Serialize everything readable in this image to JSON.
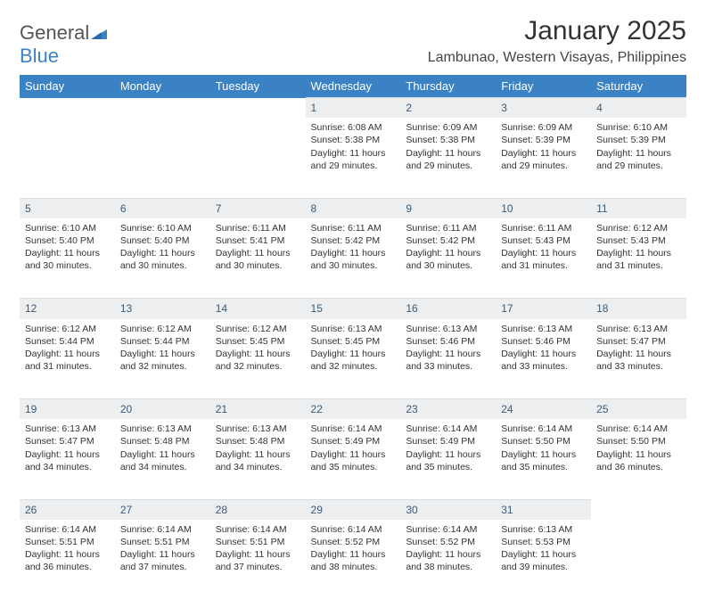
{
  "logo": {
    "word1": "General",
    "word2": "Blue"
  },
  "title": "January 2025",
  "location": "Lambunao, Western Visayas, Philippines",
  "weekdays": [
    "Sunday",
    "Monday",
    "Tuesday",
    "Wednesday",
    "Thursday",
    "Friday",
    "Saturday"
  ],
  "colors": {
    "header_bg": "#3b82c4",
    "daynum_bg": "#eceef0",
    "daynum_color": "#3a5a7a",
    "text": "#333333"
  },
  "weeks": [
    {
      "nums": [
        "",
        "",
        "",
        "1",
        "2",
        "3",
        "4"
      ],
      "cells": [
        {
          "empty": true
        },
        {
          "empty": true
        },
        {
          "empty": true
        },
        {
          "sunrise": "Sunrise: 6:08 AM",
          "sunset": "Sunset: 5:38 PM",
          "day1": "Daylight: 11 hours",
          "day2": "and 29 minutes."
        },
        {
          "sunrise": "Sunrise: 6:09 AM",
          "sunset": "Sunset: 5:38 PM",
          "day1": "Daylight: 11 hours",
          "day2": "and 29 minutes."
        },
        {
          "sunrise": "Sunrise: 6:09 AM",
          "sunset": "Sunset: 5:39 PM",
          "day1": "Daylight: 11 hours",
          "day2": "and 29 minutes."
        },
        {
          "sunrise": "Sunrise: 6:10 AM",
          "sunset": "Sunset: 5:39 PM",
          "day1": "Daylight: 11 hours",
          "day2": "and 29 minutes."
        }
      ]
    },
    {
      "nums": [
        "5",
        "6",
        "7",
        "8",
        "9",
        "10",
        "11"
      ],
      "cells": [
        {
          "sunrise": "Sunrise: 6:10 AM",
          "sunset": "Sunset: 5:40 PM",
          "day1": "Daylight: 11 hours",
          "day2": "and 30 minutes."
        },
        {
          "sunrise": "Sunrise: 6:10 AM",
          "sunset": "Sunset: 5:40 PM",
          "day1": "Daylight: 11 hours",
          "day2": "and 30 minutes."
        },
        {
          "sunrise": "Sunrise: 6:11 AM",
          "sunset": "Sunset: 5:41 PM",
          "day1": "Daylight: 11 hours",
          "day2": "and 30 minutes."
        },
        {
          "sunrise": "Sunrise: 6:11 AM",
          "sunset": "Sunset: 5:42 PM",
          "day1": "Daylight: 11 hours",
          "day2": "and 30 minutes."
        },
        {
          "sunrise": "Sunrise: 6:11 AM",
          "sunset": "Sunset: 5:42 PM",
          "day1": "Daylight: 11 hours",
          "day2": "and 30 minutes."
        },
        {
          "sunrise": "Sunrise: 6:11 AM",
          "sunset": "Sunset: 5:43 PM",
          "day1": "Daylight: 11 hours",
          "day2": "and 31 minutes."
        },
        {
          "sunrise": "Sunrise: 6:12 AM",
          "sunset": "Sunset: 5:43 PM",
          "day1": "Daylight: 11 hours",
          "day2": "and 31 minutes."
        }
      ]
    },
    {
      "nums": [
        "12",
        "13",
        "14",
        "15",
        "16",
        "17",
        "18"
      ],
      "cells": [
        {
          "sunrise": "Sunrise: 6:12 AM",
          "sunset": "Sunset: 5:44 PM",
          "day1": "Daylight: 11 hours",
          "day2": "and 31 minutes."
        },
        {
          "sunrise": "Sunrise: 6:12 AM",
          "sunset": "Sunset: 5:44 PM",
          "day1": "Daylight: 11 hours",
          "day2": "and 32 minutes."
        },
        {
          "sunrise": "Sunrise: 6:12 AM",
          "sunset": "Sunset: 5:45 PM",
          "day1": "Daylight: 11 hours",
          "day2": "and 32 minutes."
        },
        {
          "sunrise": "Sunrise: 6:13 AM",
          "sunset": "Sunset: 5:45 PM",
          "day1": "Daylight: 11 hours",
          "day2": "and 32 minutes."
        },
        {
          "sunrise": "Sunrise: 6:13 AM",
          "sunset": "Sunset: 5:46 PM",
          "day1": "Daylight: 11 hours",
          "day2": "and 33 minutes."
        },
        {
          "sunrise": "Sunrise: 6:13 AM",
          "sunset": "Sunset: 5:46 PM",
          "day1": "Daylight: 11 hours",
          "day2": "and 33 minutes."
        },
        {
          "sunrise": "Sunrise: 6:13 AM",
          "sunset": "Sunset: 5:47 PM",
          "day1": "Daylight: 11 hours",
          "day2": "and 33 minutes."
        }
      ]
    },
    {
      "nums": [
        "19",
        "20",
        "21",
        "22",
        "23",
        "24",
        "25"
      ],
      "cells": [
        {
          "sunrise": "Sunrise: 6:13 AM",
          "sunset": "Sunset: 5:47 PM",
          "day1": "Daylight: 11 hours",
          "day2": "and 34 minutes."
        },
        {
          "sunrise": "Sunrise: 6:13 AM",
          "sunset": "Sunset: 5:48 PM",
          "day1": "Daylight: 11 hours",
          "day2": "and 34 minutes."
        },
        {
          "sunrise": "Sunrise: 6:13 AM",
          "sunset": "Sunset: 5:48 PM",
          "day1": "Daylight: 11 hours",
          "day2": "and 34 minutes."
        },
        {
          "sunrise": "Sunrise: 6:14 AM",
          "sunset": "Sunset: 5:49 PM",
          "day1": "Daylight: 11 hours",
          "day2": "and 35 minutes."
        },
        {
          "sunrise": "Sunrise: 6:14 AM",
          "sunset": "Sunset: 5:49 PM",
          "day1": "Daylight: 11 hours",
          "day2": "and 35 minutes."
        },
        {
          "sunrise": "Sunrise: 6:14 AM",
          "sunset": "Sunset: 5:50 PM",
          "day1": "Daylight: 11 hours",
          "day2": "and 35 minutes."
        },
        {
          "sunrise": "Sunrise: 6:14 AM",
          "sunset": "Sunset: 5:50 PM",
          "day1": "Daylight: 11 hours",
          "day2": "and 36 minutes."
        }
      ]
    },
    {
      "nums": [
        "26",
        "27",
        "28",
        "29",
        "30",
        "31",
        ""
      ],
      "cells": [
        {
          "sunrise": "Sunrise: 6:14 AM",
          "sunset": "Sunset: 5:51 PM",
          "day1": "Daylight: 11 hours",
          "day2": "and 36 minutes."
        },
        {
          "sunrise": "Sunrise: 6:14 AM",
          "sunset": "Sunset: 5:51 PM",
          "day1": "Daylight: 11 hours",
          "day2": "and 37 minutes."
        },
        {
          "sunrise": "Sunrise: 6:14 AM",
          "sunset": "Sunset: 5:51 PM",
          "day1": "Daylight: 11 hours",
          "day2": "and 37 minutes."
        },
        {
          "sunrise": "Sunrise: 6:14 AM",
          "sunset": "Sunset: 5:52 PM",
          "day1": "Daylight: 11 hours",
          "day2": "and 38 minutes."
        },
        {
          "sunrise": "Sunrise: 6:14 AM",
          "sunset": "Sunset: 5:52 PM",
          "day1": "Daylight: 11 hours",
          "day2": "and 38 minutes."
        },
        {
          "sunrise": "Sunrise: 6:13 AM",
          "sunset": "Sunset: 5:53 PM",
          "day1": "Daylight: 11 hours",
          "day2": "and 39 minutes."
        },
        {
          "empty": true
        }
      ]
    }
  ]
}
